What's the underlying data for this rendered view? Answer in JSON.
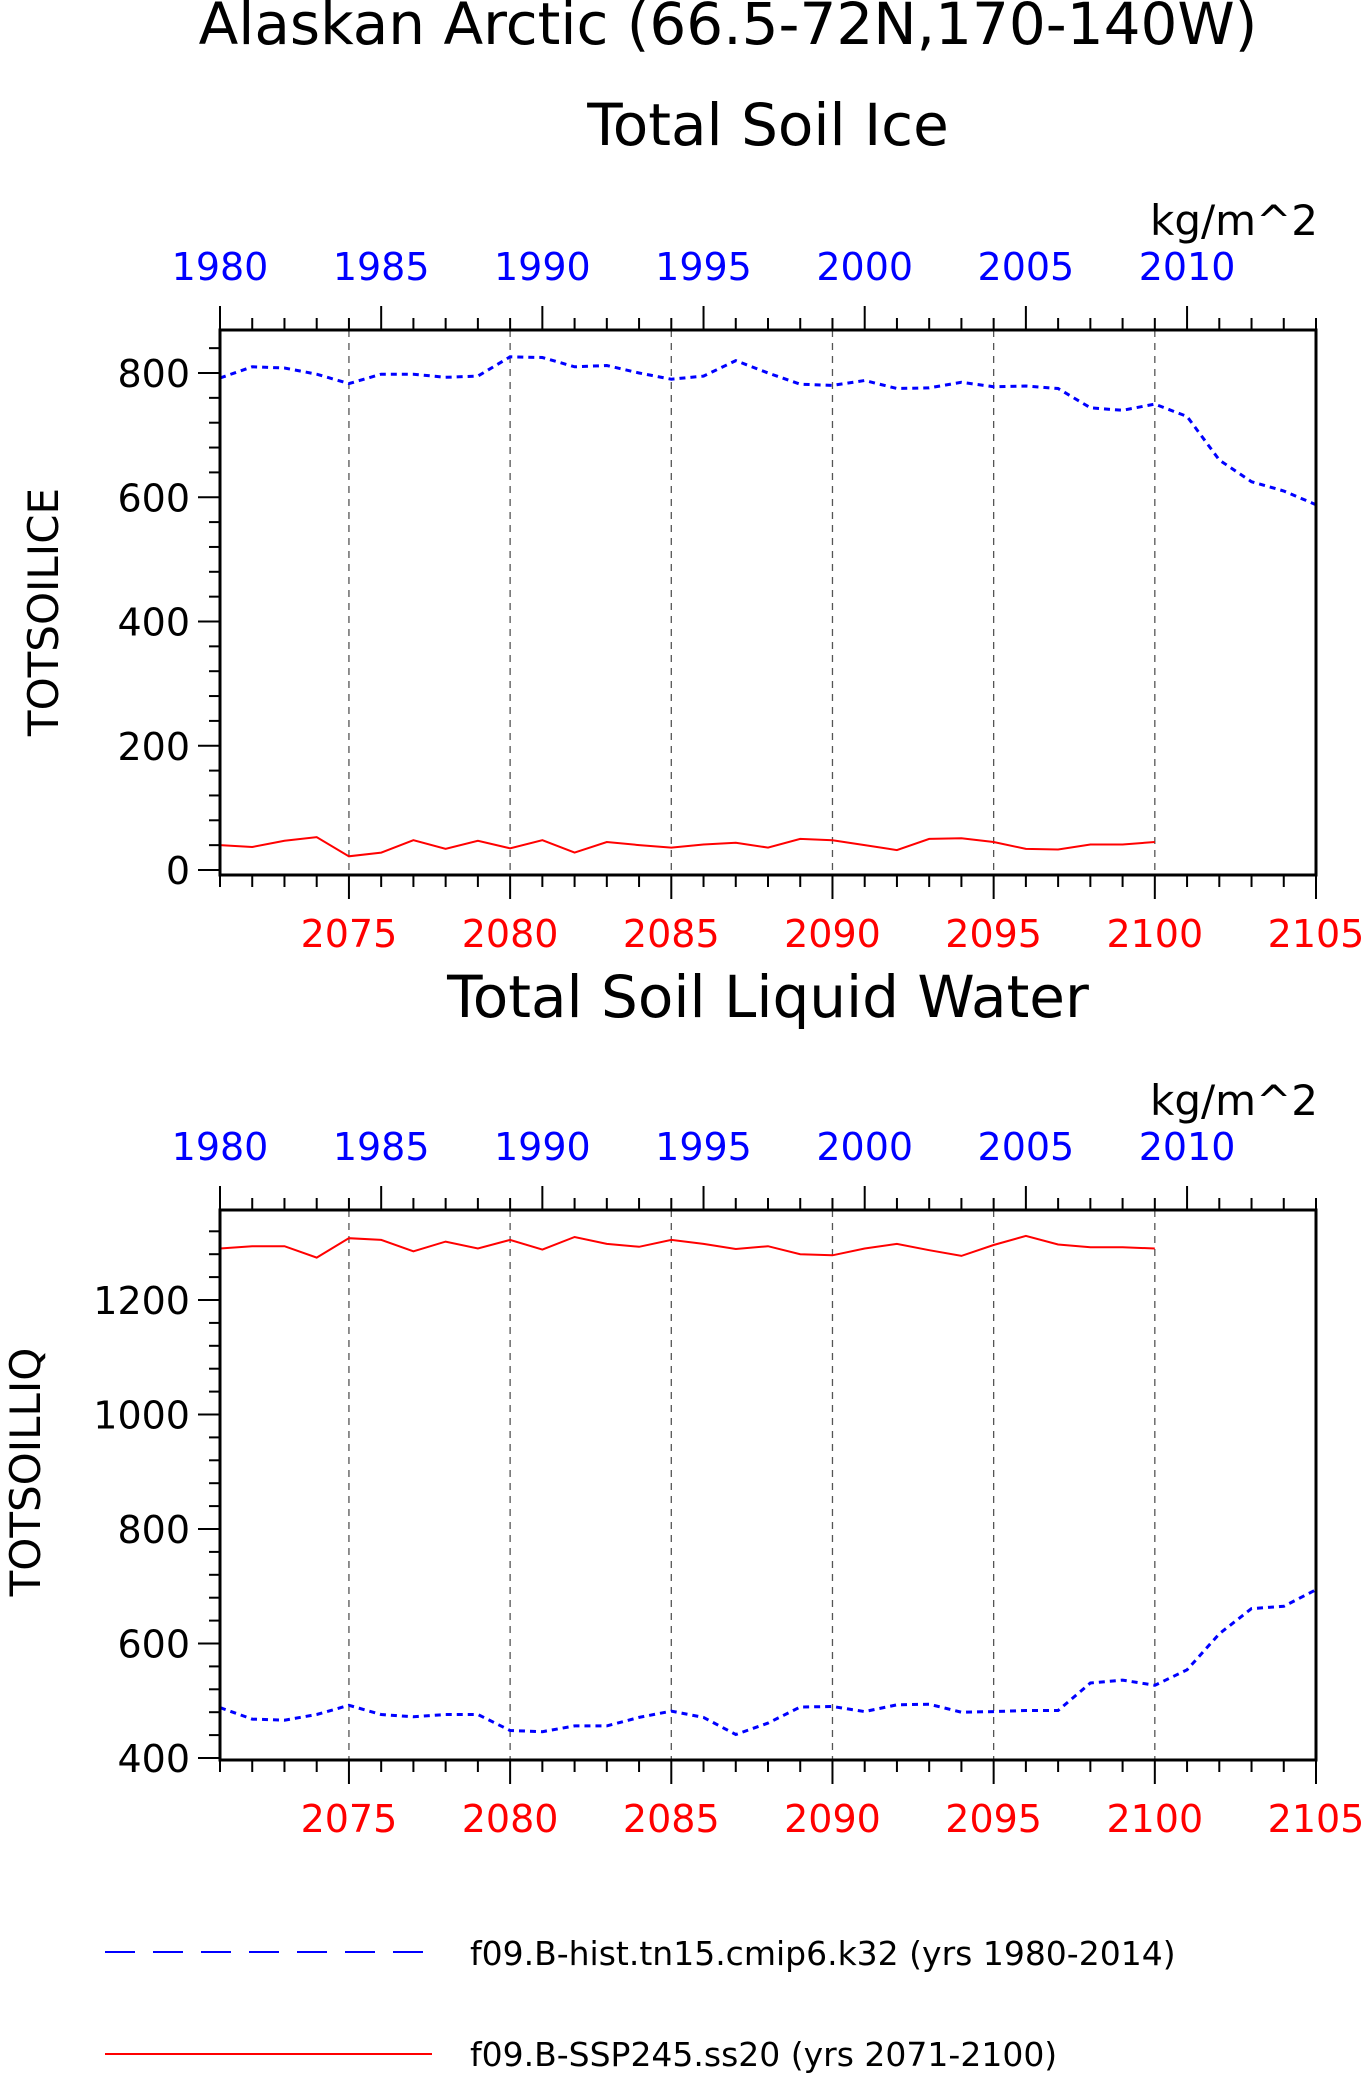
{
  "figure": {
    "title": "Alaskan Arctic (66.5-72N,170-140W)"
  },
  "colors": {
    "hist": "#0000ff",
    "ssp": "#ff0000",
    "axis": "#000000",
    "grid": "#555555"
  },
  "legend": {
    "entries": [
      {
        "label": "f09.B-hist.tn15.cmip6.k32 (yrs 1980-2014)",
        "color": "#0000ff",
        "style": "dashed"
      },
      {
        "label": "f09.B-SSP245.ss20 (yrs 2071-2100)",
        "color": "#ff0000",
        "style": "solid"
      }
    ]
  },
  "chart_data": [
    {
      "type": "line",
      "title": "Total Soil Ice",
      "units": "kg/m^2",
      "ylabel": "TOTSOILICE",
      "ylim": [
        0,
        870
      ],
      "yticks": [
        0,
        200,
        400,
        600,
        800
      ],
      "top_axis": {
        "label_color": "#0000ff",
        "range": [
          1980,
          2014
        ],
        "ticks": [
          1980,
          1985,
          1990,
          1995,
          2000,
          2005,
          2010
        ]
      },
      "bottom_axis": {
        "label_color": "#ff0000",
        "range": [
          2071,
          2105
        ],
        "ticks": [
          2075,
          2080,
          2085,
          2090,
          2095,
          2100,
          2105
        ]
      },
      "grid": "vertical dashed at major ticks",
      "series": [
        {
          "name": "f09.B-hist.tn15.cmip6.k32 (yrs 1980-2014)",
          "axis": "top",
          "style": "dashed",
          "x": [
            1980,
            1981,
            1982,
            1983,
            1984,
            1985,
            1986,
            1987,
            1988,
            1989,
            1990,
            1991,
            1992,
            1993,
            1994,
            1995,
            1996,
            1997,
            1998,
            1999,
            2000,
            2001,
            2002,
            2003,
            2004,
            2005,
            2006,
            2007,
            2008,
            2009,
            2010,
            2011,
            2012,
            2013,
            2014
          ],
          "values": [
            792,
            810,
            808,
            798,
            783,
            798,
            798,
            793,
            795,
            826,
            825,
            810,
            812,
            800,
            790,
            795,
            820,
            800,
            782,
            780,
            788,
            775,
            776,
            785,
            778,
            779,
            775,
            744,
            740,
            750,
            730,
            660,
            625,
            610,
            588
          ]
        },
        {
          "name": "f09.B-SSP245.ss20 (yrs 2071-2100)",
          "axis": "bottom",
          "style": "solid",
          "x": [
            2071,
            2072,
            2073,
            2074,
            2075,
            2076,
            2077,
            2078,
            2079,
            2080,
            2081,
            2082,
            2083,
            2084,
            2085,
            2086,
            2087,
            2088,
            2089,
            2090,
            2091,
            2092,
            2093,
            2094,
            2095,
            2096,
            2097,
            2098,
            2099,
            2100
          ],
          "values": [
            40,
            37,
            47,
            53,
            22,
            28,
            48,
            34,
            47,
            35,
            48,
            28,
            45,
            40,
            36,
            41,
            44,
            36,
            50,
            48,
            40,
            32,
            50,
            51,
            45,
            34,
            33,
            41,
            41,
            45
          ]
        }
      ]
    },
    {
      "type": "line",
      "title": "Total Soil Liquid Water",
      "units": "kg/m^2",
      "ylabel": "TOTSOILLIQ",
      "ylim": [
        400,
        1360
      ],
      "yticks": [
        400,
        600,
        800,
        1000,
        1200
      ],
      "top_axis": {
        "label_color": "#0000ff",
        "range": [
          1980,
          2014
        ],
        "ticks": [
          1980,
          1985,
          1990,
          1995,
          2000,
          2005,
          2010
        ]
      },
      "bottom_axis": {
        "label_color": "#ff0000",
        "range": [
          2071,
          2105
        ],
        "ticks": [
          2075,
          2080,
          2085,
          2090,
          2095,
          2100,
          2105
        ]
      },
      "grid": "vertical dashed at major ticks",
      "series": [
        {
          "name": "f09.B-hist.tn15.cmip6.k32 (yrs 1980-2014)",
          "axis": "top",
          "style": "dashed",
          "x": [
            1980,
            1981,
            1982,
            1983,
            1984,
            1985,
            1986,
            1987,
            1988,
            1989,
            1990,
            1991,
            1992,
            1993,
            1994,
            1995,
            1996,
            1997,
            1998,
            1999,
            2000,
            2001,
            2002,
            2003,
            2004,
            2005,
            2006,
            2007,
            2008,
            2009,
            2010,
            2011,
            2012,
            2013,
            2014
          ],
          "values": [
            488,
            468,
            466,
            476,
            492,
            476,
            472,
            476,
            476,
            448,
            446,
            456,
            456,
            471,
            482,
            471,
            441,
            461,
            489,
            490,
            481,
            493,
            494,
            480,
            481,
            483,
            483,
            531,
            536,
            527,
            554,
            617,
            661,
            665,
            694
          ]
        },
        {
          "name": "f09.B-SSP245.ss20 (yrs 2071-2100)",
          "axis": "bottom",
          "style": "solid",
          "x": [
            2071,
            2072,
            2073,
            2074,
            2075,
            2076,
            2077,
            2078,
            2079,
            2080,
            2081,
            2082,
            2083,
            2084,
            2085,
            2086,
            2087,
            2088,
            2089,
            2090,
            2091,
            2092,
            2093,
            2094,
            2095,
            2096,
            2097,
            2098,
            2099,
            2100
          ],
          "values": [
            1290,
            1294,
            1294,
            1274,
            1308,
            1305,
            1285,
            1302,
            1290,
            1305,
            1288,
            1310,
            1298,
            1293,
            1305,
            1298,
            1289,
            1294,
            1280,
            1278,
            1290,
            1298,
            1287,
            1277,
            1296,
            1312,
            1297,
            1292,
            1292,
            1290
          ]
        }
      ]
    }
  ]
}
